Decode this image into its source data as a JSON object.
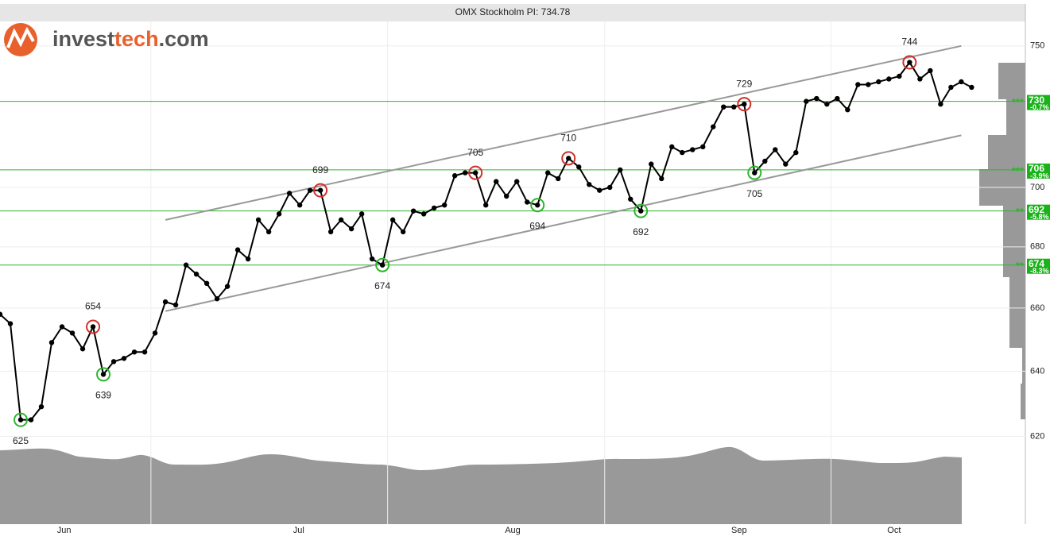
{
  "chart_data": {
    "type": "line",
    "title": "OMX Stockholm PI: 734.78",
    "logo": [
      "invest",
      "tech",
      ".com"
    ],
    "log_scale": true,
    "grid": true,
    "color": "#000000",
    "ylim": [
      594,
      759
    ],
    "yticks": [
      620,
      640,
      660,
      680,
      700,
      750
    ],
    "xlim": [
      0,
      99.2
    ],
    "xticks": [
      {
        "value": 6.2,
        "label": "Jun"
      },
      {
        "value": 28.9,
        "label": "Jul"
      },
      {
        "value": 49.6,
        "label": "Aug"
      },
      {
        "value": 71.5,
        "label": "Sep"
      },
      {
        "value": 86.5,
        "label": "Oct"
      }
    ],
    "xgrid": [
      14.6,
      37.5,
      58.5,
      80.4
    ],
    "x": [
      0,
      1,
      2,
      3,
      4,
      5,
      6,
      7,
      8,
      9,
      10,
      11,
      12,
      13,
      14,
      15,
      16,
      17,
      18,
      19,
      20,
      21,
      22,
      23,
      24,
      25,
      26,
      27,
      28,
      29,
      30,
      31,
      32,
      33,
      34,
      35,
      36,
      37,
      38,
      39,
      40,
      41,
      42,
      43,
      44,
      45,
      46,
      47,
      48,
      49,
      50,
      51,
      52,
      53,
      54,
      55,
      56,
      57,
      58,
      59,
      60,
      61,
      62,
      63,
      64,
      65,
      66,
      67,
      68,
      69,
      70,
      71,
      72,
      73,
      74,
      75,
      76,
      77,
      78,
      79,
      80,
      81,
      82,
      83,
      84,
      85,
      86,
      87,
      88,
      89,
      90,
      91,
      92,
      93,
      94
    ],
    "values": [
      658,
      655,
      625,
      625,
      629,
      649,
      654,
      652,
      647,
      654,
      639,
      643,
      644,
      646,
      646,
      652,
      662,
      661,
      674,
      671,
      668,
      663,
      667,
      679,
      676,
      689,
      685,
      691,
      698,
      694,
      699,
      699,
      685,
      689,
      686,
      691,
      676,
      674,
      689,
      685,
      692,
      691,
      693,
      694,
      704,
      705,
      705,
      694,
      702,
      697,
      702,
      695,
      694,
      705,
      703,
      710,
      707,
      701,
      699,
      700,
      706,
      696,
      692,
      708,
      703,
      714,
      712,
      713,
      714,
      721,
      728,
      728,
      729,
      705,
      709,
      713,
      708,
      712,
      730,
      731,
      729,
      731,
      727,
      736,
      736,
      737,
      738,
      739,
      744,
      738,
      741,
      729,
      735,
      737,
      735
    ],
    "annotations": [
      {
        "x": 2,
        "text": "625",
        "kind": "bottom"
      },
      {
        "x": 9,
        "text": "654",
        "kind": "top"
      },
      {
        "x": 10,
        "text": "639",
        "kind": "bottom"
      },
      {
        "x": 31,
        "text": "699",
        "kind": "top"
      },
      {
        "x": 37,
        "text": "674",
        "kind": "bottom"
      },
      {
        "x": 46,
        "text": "705",
        "kind": "top"
      },
      {
        "x": 52,
        "text": "694",
        "kind": "bottom"
      },
      {
        "x": 55,
        "text": "710",
        "kind": "top"
      },
      {
        "x": 62,
        "text": "692",
        "kind": "bottom"
      },
      {
        "x": 72,
        "text": "729",
        "kind": "top"
      },
      {
        "x": 73,
        "text": "705",
        "kind": "bottom"
      },
      {
        "x": 88,
        "text": "744",
        "kind": "top"
      }
    ],
    "channel": [
      {
        "x": [
          16,
          93
        ],
        "values": [
          689,
          750
        ]
      },
      {
        "x": [
          16,
          93
        ],
        "values": [
          659,
          718
        ]
      }
    ],
    "levels": [
      {
        "value": 730,
        "label": "730",
        "change": "-0.7%",
        "stars": "***"
      },
      {
        "value": 706,
        "label": "706",
        "change": "-3.9%",
        "stars": "***"
      },
      {
        "value": 692,
        "label": "692",
        "change": "-5.8%",
        "stars": "**"
      },
      {
        "value": 674,
        "label": "674",
        "change": "-8.3%",
        "stars": "**"
      }
    ]
  }
}
